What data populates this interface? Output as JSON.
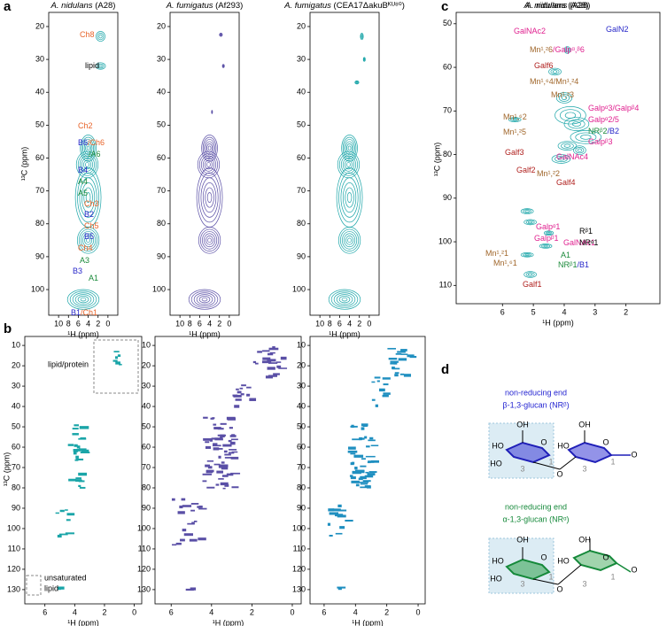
{
  "a": {
    "label": "a",
    "ylabel": "¹³C (ppm)",
    "plots": [
      {
        "organism": "A. nidulans",
        "strain": "(A28)",
        "xlabel": "¹H (ppm)",
        "xlim": [
          12,
          -2
        ],
        "ylim": [
          15.7,
          107.8
        ],
        "xticks": [
          10,
          8,
          6,
          4,
          2,
          0
        ],
        "yticks": [
          20,
          30,
          40,
          50,
          60,
          70,
          80,
          90,
          100
        ],
        "peaks": [
          [
            "Ch8"
          ],
          [
            "lipid"
          ],
          [
            "Ch2"
          ],
          [
            "B6",
            "/Ch6"
          ],
          [
            "/A6"
          ],
          [
            "B4"
          ],
          [
            "A4"
          ],
          [
            "A5"
          ],
          [
            "Ch3"
          ],
          [
            "B2"
          ],
          [
            "Ch5"
          ],
          [
            "B5"
          ],
          [
            "Ch4"
          ],
          [
            "A3"
          ],
          [
            "B3"
          ],
          [
            "A1"
          ],
          [
            "B1",
            "/Ch1"
          ]
        ]
      },
      {
        "organism": "A. fumigatus",
        "strain": "(Af293)",
        "xlabel": "¹H (ppm)",
        "xlim": [
          12,
          -2
        ],
        "ylim": [
          15.7,
          107.8
        ],
        "xticks": [
          10,
          8,
          6,
          4,
          2,
          0
        ],
        "yticks": [
          20,
          30,
          40,
          50,
          60,
          70,
          80,
          90,
          100
        ]
      },
      {
        "organism": "A. fumigatus",
        "strain": "(CEA17ΔakuBᴷᵁ⁸⁰)",
        "xlabel": "¹H (ppm)",
        "xlim": [
          12,
          -2
        ],
        "ylim": [
          15.7,
          107.8
        ],
        "xticks": [
          10,
          8,
          6,
          4,
          2,
          0
        ],
        "yticks": [
          20,
          30,
          40,
          50,
          60,
          70,
          80,
          90,
          100
        ]
      }
    ]
  },
  "b": {
    "label": "b",
    "ylabel": "¹³C (ppm)",
    "plots": [
      {
        "xlabel": "¹H (ppm)",
        "xlim": [
          7.35,
          -0.5
        ],
        "ylim": [
          5.6,
          137
        ],
        "xticks": [
          6,
          4,
          2,
          0
        ],
        "yticks": [
          10,
          20,
          30,
          40,
          50,
          60,
          70,
          80,
          90,
          100,
          110,
          120,
          130
        ],
        "annotations": [
          "lipid/protein",
          "unsaturated",
          "lipid"
        ]
      },
      {
        "xlabel": "¹H (ppm)",
        "xlim": [
          6.8,
          -0.44
        ],
        "ylim": [
          5.6,
          137
        ],
        "xticks": [
          6,
          4,
          2,
          0
        ],
        "yticks": [
          10,
          20,
          30,
          40,
          50,
          60,
          70,
          80,
          90,
          100,
          110,
          120,
          130
        ]
      },
      {
        "xlabel": "¹H (ppm)",
        "xlim": [
          6.9,
          -0.45
        ],
        "ylim": [
          5.6,
          137
        ],
        "xticks": [
          6,
          4,
          2,
          0
        ],
        "yticks": [
          10,
          20,
          30,
          40,
          50,
          60,
          70,
          80,
          90,
          100,
          110,
          120,
          130
        ]
      }
    ]
  },
  "c": {
    "label": "c",
    "organism": "A. nidulans",
    "strain": "(A28)",
    "xlabel": "¹H (ppm)",
    "ylabel": "¹³C (ppm)",
    "xlim": [
      7.5,
      0.9
    ],
    "ylim": [
      47.4,
      114.2
    ],
    "xticks": [
      6,
      5,
      4,
      3,
      2
    ],
    "yticks": [
      50,
      60,
      70,
      80,
      90,
      100,
      110
    ],
    "peaks": [
      [
        "GalNAc2"
      ],
      [
        "GalN2"
      ],
      [
        "Mn¹,²6",
        "/Galpᵅ,ᵝ6"
      ],
      [
        "Galf6"
      ],
      [
        "Mn¹,⁶4/Mn¹,²4"
      ],
      [
        "Mn¹,²3"
      ],
      [
        "Mn¹,⁶2"
      ],
      [
        "Galpᵅ3/Galpᵝ4"
      ],
      [
        "Galpᵅ2/5"
      ],
      [
        "Mn¹,²5"
      ],
      [
        "NRᵝ2",
        "/B2"
      ],
      [
        "Galpᵝ3"
      ],
      [
        "Galf3"
      ],
      [
        "GalNAc4"
      ],
      [
        "Galf2"
      ],
      [
        "Mn¹,²2"
      ],
      [
        "Galf4"
      ],
      [
        "Galpᵅ1"
      ],
      [
        "Galpᵝ1"
      ],
      [
        "GalNAc1"
      ],
      [
        "Rᵝ1"
      ],
      [
        "NRᵅ1"
      ],
      [
        "Mn¹,²1"
      ],
      [
        "A1"
      ],
      [
        "Mn¹,⁶1"
      ],
      [
        "NRᵝ1",
        "/B1"
      ],
      [
        "Galf1"
      ]
    ]
  },
  "d": {
    "label": "d",
    "beta": {
      "line1": "non-reducing end",
      "line2": "β-1,3-glucan (NRᵝ)",
      "labels": [
        "OH",
        "HO",
        "HO",
        "O",
        "3",
        "1",
        "O",
        "OH",
        "HO",
        "O",
        "3",
        "1",
        "O"
      ]
    },
    "alpha": {
      "line1": "non-reducing end",
      "line2": "α-1,3-glucan (NRᵅ)",
      "labels": [
        "OH",
        "HO",
        "HO",
        "O",
        "3",
        "1",
        "O",
        "OH",
        "HO",
        "O",
        "3",
        "1",
        "O"
      ]
    }
  }
}
